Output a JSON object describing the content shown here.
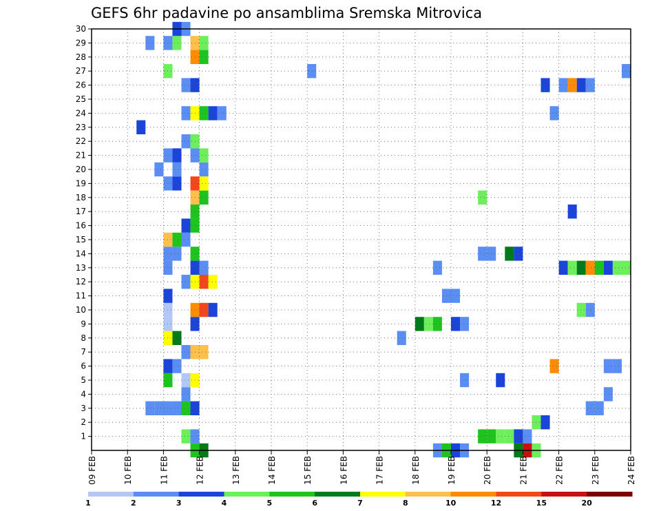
{
  "chart_data": {
    "type": "heatmap",
    "title": "GEFS 6hr padavine po ansamblima Sremska Mitrovica",
    "xlabel": "",
    "ylabel": "",
    "x_ticks": [
      "09 FEB",
      "10 FEB",
      "11 FEB",
      "12 FEB",
      "13 FEB",
      "14 FEB",
      "15 FEB",
      "16 FEB",
      "17 FEB",
      "18 FEB",
      "19 FEB",
      "20 FEB",
      "21 FEB",
      "22 FEB",
      "23 FEB",
      "24 FEB"
    ],
    "x_range_days": [
      0,
      15
    ],
    "x_step_days": 0.25,
    "y_ticks": [
      1,
      2,
      3,
      4,
      5,
      6,
      7,
      8,
      9,
      10,
      11,
      12,
      13,
      14,
      15,
      16,
      17,
      18,
      19,
      20,
      21,
      22,
      23,
      24,
      25,
      26,
      27,
      28,
      29,
      30
    ],
    "y_range": [
      0,
      30
    ],
    "grid": true,
    "colorbar": {
      "labels": [
        "1",
        "2",
        "3",
        "4",
        "5",
        "6",
        "7",
        "8",
        "10",
        "12",
        "15",
        "20"
      ],
      "colors": [
        "#b3c7f7",
        "#5b8ef2",
        "#1b45d9",
        "#6cef5b",
        "#1ec31e",
        "#007a1a",
        "#ffff00",
        "#ffc04b",
        "#ff8c00",
        "#f2461b",
        "#c81010",
        "#7a0000"
      ]
    },
    "cells": [
      [
        0,
        1.5,
        3,
        1
      ],
      [
        0,
        1.75,
        3,
        1
      ],
      [
        0,
        1.25,
        23,
        2
      ],
      [
        0,
        1.5,
        29,
        1
      ],
      [
        0,
        2.0,
        3,
        1
      ],
      [
        0,
        2.25,
        3,
        1
      ],
      [
        0,
        2.5,
        3,
        4
      ],
      [
        0,
        2.75,
        3,
        2
      ],
      [
        0,
        2.5,
        4,
        1
      ],
      [
        0,
        2.0,
        5,
        4
      ],
      [
        0,
        2.5,
        5,
        0
      ],
      [
        0,
        2.75,
        5,
        6
      ],
      [
        0,
        2.0,
        6,
        2
      ],
      [
        0,
        2.25,
        6,
        1
      ],
      [
        0,
        2.5,
        7,
        1
      ],
      [
        0,
        2.75,
        7,
        7
      ],
      [
        0,
        3.0,
        7,
        7
      ],
      [
        0,
        2.0,
        8,
        6
      ],
      [
        0,
        2.25,
        8,
        5
      ],
      [
        0,
        2.75,
        9,
        2
      ],
      [
        0,
        2.0,
        9,
        0
      ],
      [
        0,
        2.0,
        10,
        0
      ],
      [
        0,
        2.75,
        10,
        8
      ],
      [
        0,
        3.0,
        10,
        9
      ],
      [
        0,
        3.25,
        10,
        2
      ],
      [
        0,
        2.0,
        11,
        2
      ],
      [
        0,
        2.5,
        12,
        1
      ],
      [
        0,
        2.75,
        12,
        6
      ],
      [
        0,
        3.0,
        12,
        9
      ],
      [
        0,
        3.25,
        12,
        6
      ],
      [
        0,
        2.0,
        13,
        1
      ],
      [
        0,
        2.75,
        13,
        2
      ],
      [
        0,
        3.0,
        13,
        1
      ],
      [
        0,
        2.0,
        14,
        1
      ],
      [
        0,
        2.25,
        14,
        1
      ],
      [
        0,
        2.75,
        14,
        4
      ],
      [
        0,
        2.0,
        15,
        7
      ],
      [
        0,
        2.25,
        15,
        4
      ],
      [
        0,
        2.5,
        15,
        1
      ],
      [
        0,
        2.5,
        16,
        2
      ],
      [
        0,
        2.75,
        16,
        4
      ],
      [
        0,
        2.75,
        17,
        4
      ],
      [
        0,
        2.75,
        18,
        7
      ],
      [
        0,
        3.0,
        18,
        4
      ],
      [
        0,
        2.0,
        19,
        1
      ],
      [
        0,
        2.25,
        19,
        2
      ],
      [
        0,
        2.75,
        19,
        9
      ],
      [
        0,
        3.0,
        19,
        6
      ],
      [
        0,
        1.75,
        20,
        1
      ],
      [
        0,
        2.25,
        20,
        1
      ],
      [
        0,
        3.0,
        20,
        1
      ],
      [
        0,
        2.0,
        21,
        1
      ],
      [
        0,
        2.25,
        21,
        2
      ],
      [
        0,
        2.75,
        21,
        1
      ],
      [
        0,
        3.0,
        21,
        3
      ],
      [
        0,
        2.5,
        22,
        1
      ],
      [
        0,
        2.75,
        22,
        3
      ],
      [
        0,
        2.5,
        24,
        1
      ],
      [
        0,
        2.75,
        24,
        6
      ],
      [
        0,
        3.0,
        24,
        4
      ],
      [
        0,
        3.25,
        24,
        2
      ],
      [
        0,
        3.5,
        24,
        1
      ],
      [
        0,
        2.5,
        26,
        1
      ],
      [
        0,
        2.75,
        26,
        2
      ],
      [
        0,
        2.0,
        27,
        3
      ],
      [
        0,
        2.75,
        28,
        8
      ],
      [
        0,
        3.0,
        28,
        4
      ],
      [
        0,
        2.0,
        29,
        1
      ],
      [
        0,
        2.25,
        29,
        3
      ],
      [
        0,
        2.75,
        29,
        7
      ],
      [
        0,
        3.0,
        29,
        3
      ],
      [
        0,
        2.25,
        30,
        2
      ],
      [
        0,
        2.5,
        30,
        1
      ],
      [
        0,
        2.75,
        0,
        4
      ],
      [
        0,
        3.0,
        0,
        5
      ],
      [
        0,
        2.5,
        1,
        3
      ],
      [
        0,
        2.75,
        1,
        1
      ],
      [
        0,
        6.0,
        27,
        1
      ],
      [
        0,
        8.5,
        8,
        1
      ],
      [
        0,
        9.0,
        9,
        5
      ],
      [
        0,
        9.25,
        9,
        3
      ],
      [
        0,
        9.5,
        9,
        4
      ],
      [
        0,
        9.5,
        13,
        1
      ],
      [
        0,
        9.5,
        0,
        1
      ],
      [
        0,
        9.75,
        0,
        4
      ],
      [
        0,
        10.0,
        0,
        2
      ],
      [
        0,
        10.25,
        0,
        1
      ],
      [
        0,
        10.0,
        9,
        2
      ],
      [
        0,
        10.25,
        9,
        1
      ],
      [
        0,
        9.75,
        11,
        1
      ],
      [
        0,
        10.0,
        11,
        1
      ],
      [
        0,
        10.25,
        5,
        1
      ],
      [
        0,
        11.25,
        5,
        2
      ],
      [
        0,
        10.75,
        18,
        3
      ],
      [
        0,
        10.75,
        14,
        1
      ],
      [
        0,
        11.0,
        14,
        1
      ],
      [
        0,
        11.5,
        14,
        5
      ],
      [
        0,
        11.75,
        14,
        2
      ],
      [
        0,
        10.75,
        1,
        4
      ],
      [
        0,
        11.0,
        1,
        4
      ],
      [
        0,
        11.25,
        1,
        3
      ],
      [
        0,
        11.5,
        1,
        3
      ],
      [
        0,
        11.75,
        1,
        2
      ],
      [
        0,
        12.0,
        1,
        1
      ],
      [
        0,
        11.75,
        0,
        5
      ],
      [
        0,
        12.0,
        0,
        10
      ],
      [
        0,
        12.25,
        0,
        3
      ],
      [
        0,
        12.25,
        2,
        3
      ],
      [
        0,
        12.5,
        2,
        2
      ],
      [
        0,
        12.75,
        24,
        1
      ],
      [
        0,
        12.5,
        26,
        2
      ],
      [
        0,
        12.75,
        6,
        8
      ],
      [
        0,
        13.25,
        17,
        2
      ],
      [
        0,
        13.0,
        13,
        2
      ],
      [
        0,
        13.25,
        13,
        3
      ],
      [
        0,
        13.5,
        13,
        5
      ],
      [
        0,
        13.75,
        13,
        8
      ],
      [
        0,
        14.0,
        13,
        4
      ],
      [
        0,
        14.25,
        13,
        2
      ],
      [
        0,
        14.5,
        13,
        3
      ],
      [
        0,
        14.75,
        13,
        3
      ],
      [
        0,
        13.0,
        26,
        1
      ],
      [
        0,
        13.25,
        26,
        8
      ],
      [
        0,
        13.5,
        26,
        2
      ],
      [
        0,
        13.75,
        26,
        1
      ],
      [
        0,
        13.5,
        10,
        3
      ],
      [
        0,
        13.75,
        10,
        1
      ],
      [
        0,
        13.75,
        3,
        1
      ],
      [
        0,
        14.0,
        3,
        1
      ],
      [
        0,
        14.25,
        4,
        1
      ],
      [
        0,
        14.25,
        6,
        1
      ],
      [
        0,
        14.5,
        6,
        1
      ],
      [
        0,
        14.75,
        27,
        1
      ]
    ]
  }
}
